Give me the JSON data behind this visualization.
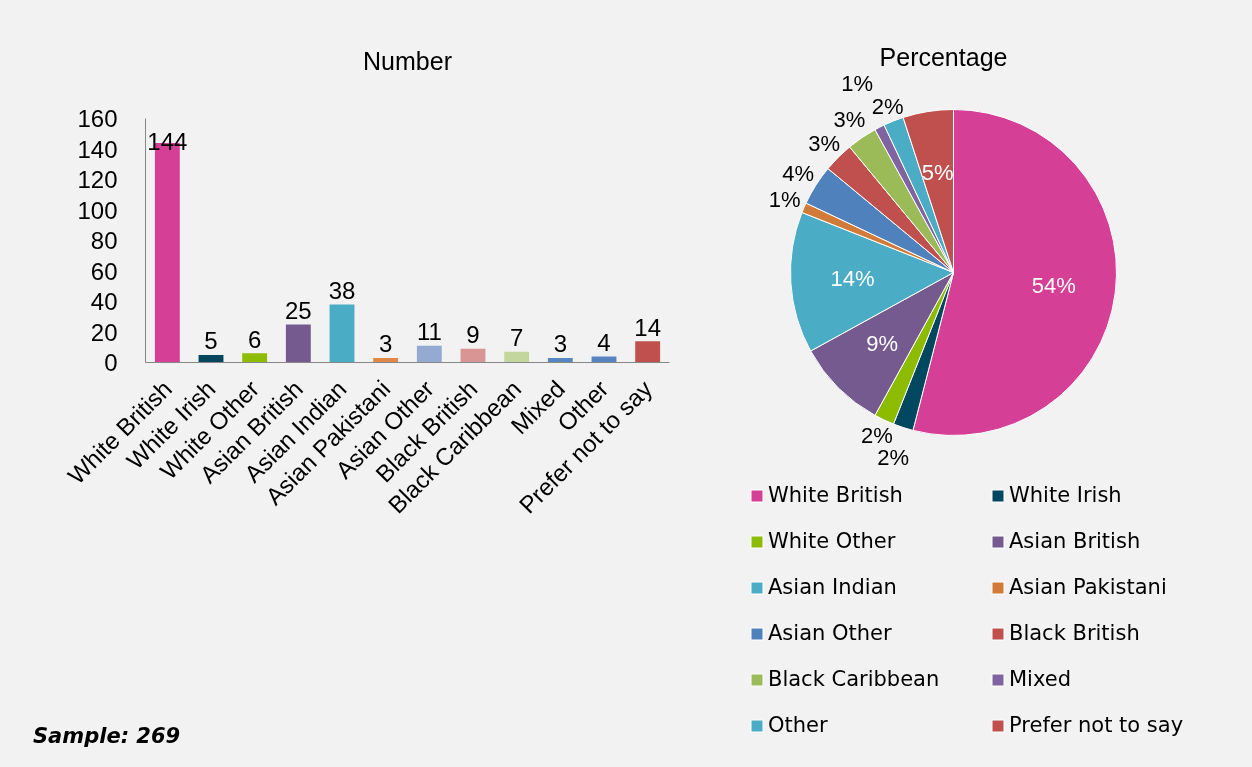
{
  "chart_data": [
    {
      "type": "bar",
      "title": "Number",
      "categories": [
        "White British",
        "White Irish",
        "White Other",
        "Asian British",
        "Asian Indian",
        "Asian Pakistani",
        "Asian Other",
        "Black British",
        "Black Caribbean",
        "Mixed",
        "Other",
        "Prefer not to say"
      ],
      "values": [
        144,
        5,
        6,
        25,
        38,
        3,
        11,
        9,
        7,
        3,
        4,
        14
      ],
      "colors": [
        "#d63f96",
        "#02475e",
        "#8ebc00",
        "#745a8f",
        "#4aacc5",
        "#e0884a",
        "#95aad2",
        "#d99593",
        "#c3d69b",
        "#5a86c0",
        "#5884c2",
        "#c0504d"
      ],
      "ylim": [
        0,
        160
      ],
      "yticks": [
        0,
        20,
        40,
        60,
        80,
        100,
        120,
        140,
        160
      ],
      "data_labels": true,
      "annotations": [
        "Sample: 269"
      ]
    },
    {
      "type": "pie",
      "title": "Percentage",
      "categories": [
        "White British",
        "White Irish",
        "White Other",
        "Asian British",
        "Asian Indian",
        "Asian Pakistani",
        "Asian Other",
        "Black British",
        "Black Caribbean",
        "Mixed",
        "Other",
        "Prefer not to say"
      ],
      "values": [
        54,
        2,
        2,
        9,
        14,
        1,
        4,
        3,
        3,
        1,
        2,
        5
      ],
      "colors": [
        "#d63f96",
        "#00475f",
        "#8cbb00",
        "#745a8f",
        "#4bacc6",
        "#d27b39",
        "#4f81bd",
        "#c0504d",
        "#9bbb59",
        "#8064a2",
        "#4bacc6",
        "#c0504d"
      ],
      "value_labels": [
        "54%",
        "2%",
        "2%",
        "9%",
        "14%",
        "1%",
        "4%",
        "3%",
        "3%",
        "1%",
        "2%",
        "5%"
      ],
      "legend": "bottom"
    }
  ]
}
